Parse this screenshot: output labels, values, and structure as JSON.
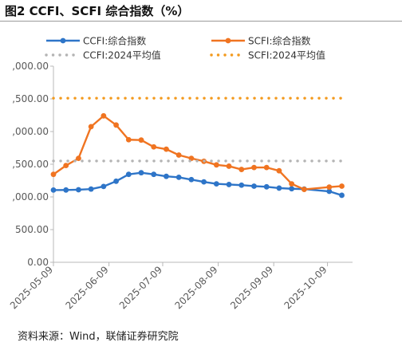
{
  "figure": {
    "title": "图2  CCFI、SCFI 综合指数（%）",
    "source": "资料来源：Wind，联储证券研究院"
  },
  "chart_data": {
    "type": "line",
    "ylim": [
      0,
      3000
    ],
    "y_ticks": [
      0,
      500,
      1000,
      1500,
      2000,
      2500,
      3000
    ],
    "y_tick_labels": [
      "0.00",
      "500.00",
      ",000.00",
      ",500.00",
      ",000.00",
      ",500.00",
      ",000.00"
    ],
    "x_tick_labels": [
      "2025-05-09",
      "2025-06-09",
      "2025-07-09",
      "2025-08-09",
      "2025-09-09",
      "2025-10-09"
    ],
    "grid": false,
    "legend_position": "top",
    "x": [
      "2025-05-09",
      "2025-05-16",
      "2025-05-23",
      "2025-05-30",
      "2025-06-06",
      "2025-06-13",
      "2025-06-20",
      "2025-06-27",
      "2025-07-04",
      "2025-07-11",
      "2025-07-18",
      "2025-07-25",
      "2025-08-01",
      "2025-08-08",
      "2025-08-15",
      "2025-08-22",
      "2025-08-29",
      "2025-09-05",
      "2025-09-12",
      "2025-09-19",
      "2025-09-26",
      "2025-10-10",
      "2025-10-17"
    ],
    "series": [
      {
        "name": "CCFI:综合指数",
        "color": "#2e75c8",
        "style": "solid-marker",
        "values": [
          1105,
          1106,
          1110,
          1120,
          1160,
          1240,
          1345,
          1370,
          1345,
          1315,
          1300,
          1265,
          1230,
          1200,
          1190,
          1180,
          1165,
          1155,
          1135,
          1125,
          1120,
          1085,
          1025
        ]
      },
      {
        "name": "SCFI:综合指数",
        "color": "#f07421",
        "style": "solid-marker",
        "values": [
          1345,
          1480,
          1590,
          2075,
          2240,
          2100,
          1875,
          1870,
          1765,
          1730,
          1640,
          1590,
          1545,
          1490,
          1470,
          1420,
          1450,
          1450,
          1400,
          1200,
          1115,
          1150,
          1165
        ]
      },
      {
        "name": "CCFI:2024平均值",
        "color": "#b4b4b4",
        "style": "dotted",
        "values": [
          1550,
          1550,
          1550,
          1550,
          1550,
          1550,
          1550,
          1550,
          1550,
          1550,
          1550,
          1550,
          1550,
          1550,
          1550,
          1550,
          1550,
          1550,
          1550,
          1550,
          1550,
          1550,
          1550
        ]
      },
      {
        "name": "SCFI:2024平均值",
        "color": "#f39a1e",
        "style": "dotted",
        "values": [
          2510,
          2510,
          2510,
          2510,
          2510,
          2510,
          2510,
          2510,
          2510,
          2510,
          2510,
          2510,
          2510,
          2510,
          2510,
          2510,
          2510,
          2510,
          2510,
          2510,
          2510,
          2510,
          2510
        ]
      }
    ]
  }
}
